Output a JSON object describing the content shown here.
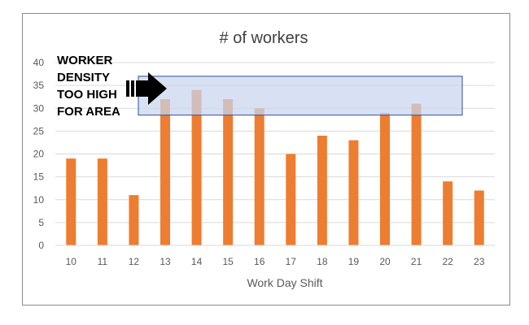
{
  "chart_data": {
    "type": "bar",
    "title": "# of workers",
    "xlabel": "Work Day Shift",
    "ylabel": "",
    "categories": [
      "10",
      "11",
      "12",
      "13",
      "14",
      "15",
      "16",
      "17",
      "18",
      "19",
      "20",
      "21",
      "22",
      "23"
    ],
    "values": [
      19,
      19,
      11,
      32,
      34,
      32,
      30,
      20,
      24,
      23,
      29,
      31,
      14,
      12
    ],
    "ylim": [
      0,
      40
    ],
    "yticks": [
      0,
      5,
      10,
      15,
      20,
      25,
      30,
      35,
      40
    ],
    "grid": true,
    "legend": "none",
    "annotation": {
      "lines": [
        "WORKER",
        "DENSITY",
        "TOO HIGH",
        "FOR AREA"
      ],
      "highlight_y_range": [
        28.5,
        37
      ]
    },
    "colors": {
      "bar": "#ED7D31",
      "grid": "#d9d9d9",
      "highlight_fill": "#c9d6ee",
      "highlight_stroke": "#2f4f8f",
      "arrow": "#000000"
    }
  }
}
